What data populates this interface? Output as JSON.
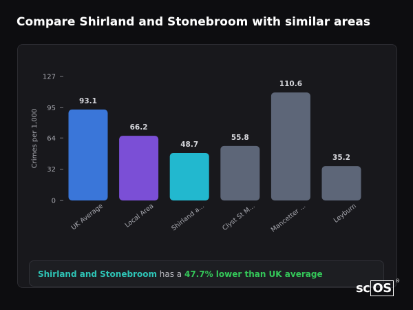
{
  "page_title": "Compare Shirland and Stonebroom with similar areas",
  "colors": {
    "uk": "#3a76d9",
    "local": "#7b4fd6",
    "highlight": "#22b8cf",
    "other": "#5d6678",
    "accent_name": "#2ec4b6",
    "accent_stat": "#34c759"
  },
  "chart_data": {
    "type": "bar",
    "title": "",
    "xlabel": "",
    "ylabel": "Crimes per 1,000",
    "ylim": [
      0,
      127
    ],
    "yticks": [
      0,
      32,
      64,
      95,
      127
    ],
    "categories": [
      "UK Average",
      "Local Area",
      "Shirland a...",
      "Clyst St M...",
      "Mancetter ...",
      "Leyburn"
    ],
    "values": [
      93.1,
      66.2,
      48.7,
      55.8,
      110.6,
      35.2
    ],
    "value_labels": [
      "93.1",
      "66.2",
      "48.7",
      "55.8",
      "110.6",
      "35.2"
    ],
    "bar_colors": [
      "#3a76d9",
      "#7b4fd6",
      "#22b8cf",
      "#5d6678",
      "#5d6678",
      "#5d6678"
    ],
    "grid": false,
    "legend": "none"
  },
  "summary": {
    "area_name": "Shirland and Stonebroom",
    "middle_text": " has a ",
    "stat_text": "47.7% lower than UK average"
  },
  "logo": {
    "prefix": "sc",
    "boxed": "OS",
    "mark": "®"
  }
}
